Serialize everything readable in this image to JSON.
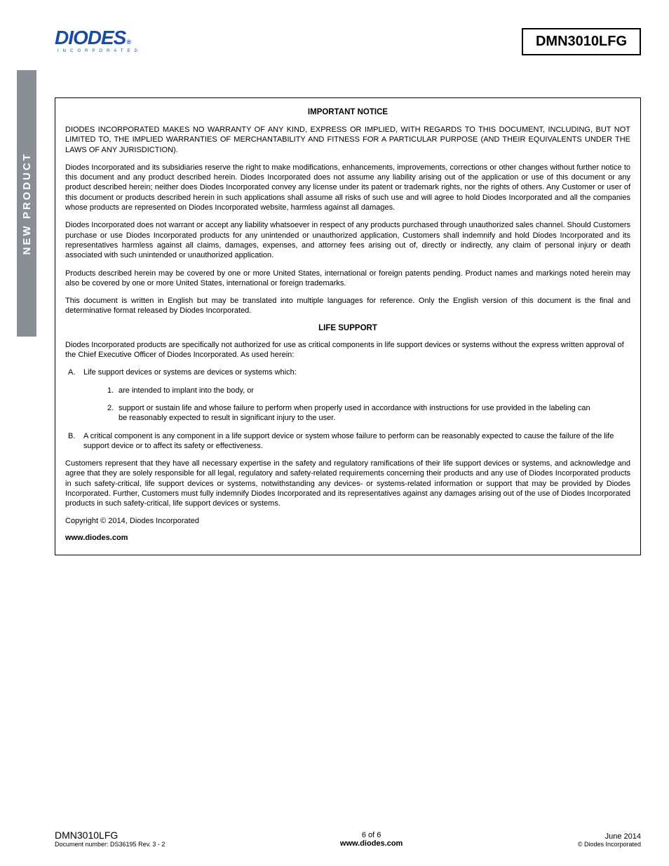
{
  "sideTab": "NEW PRODUCT",
  "logo": {
    "name": "DIODES",
    "reg": "®",
    "sub": "INCORPORATED"
  },
  "partNumber": "DMN3010LFG",
  "notice": {
    "title": "IMPORTANT NOTICE",
    "p1": "DIODES INCORPORATED MAKES NO WARRANTY OF ANY KIND, EXPRESS OR IMPLIED, WITH REGARDS TO THIS DOCUMENT, INCLUDING, BUT NOT LIMITED TO, THE IMPLIED WARRANTIES OF MERCHANTABILITY AND FITNESS FOR A PARTICULAR PURPOSE (AND THEIR EQUIVALENTS UNDER THE LAWS OF ANY JURISDICTION).",
    "p2": "Diodes Incorporated and its subsidiaries reserve the right to make modifications, enhancements, improvements, corrections or other changes without further notice to this document and any product described herein. Diodes Incorporated does not assume any liability arising out of the application or use of this document or any product described herein; neither does Diodes Incorporated convey any license under its patent or trademark rights, nor the rights of others.  Any Customer or user of this document or products described herein in such applications shall assume all risks of such use and will agree to hold Diodes Incorporated and all the companies whose products are represented on Diodes Incorporated website, harmless against all damages.",
    "p3": "Diodes Incorporated does not warrant or accept any liability whatsoever in respect of any products purchased through unauthorized sales channel. Should Customers purchase or use Diodes Incorporated products for any unintended or unauthorized application, Customers shall indemnify and hold Diodes Incorporated and its representatives harmless against all claims, damages, expenses, and attorney fees arising out of, directly or indirectly, any claim of personal injury or death associated with such unintended or unauthorized application.",
    "p4": "Products described herein may be covered by one or more United States, international or foreign patents pending.  Product names and markings noted herein may also be covered by one or more United States, international or foreign trademarks.",
    "p5": "This document is written in English but may be translated into multiple languages for reference.  Only the English version of this document is the final and determinative format released by Diodes Incorporated."
  },
  "lifeSupport": {
    "title": "LIFE SUPPORT",
    "intro": "Diodes Incorporated products are specifically not authorized for use as critical components in life support devices or systems without the express written approval of the Chief Executive Officer of Diodes Incorporated. As used herein:",
    "A": {
      "label": "A.",
      "text": "Life support devices or systems are devices or systems which:"
    },
    "A1": {
      "label": "1.",
      "text": "are intended to implant into the body, or"
    },
    "A2": {
      "label": "2.",
      "text": "support or sustain life and whose failure to perform when properly used in accordance with instructions for use provided in the labeling can be reasonably expected to result in significant injury to the user."
    },
    "B": {
      "label": "B.",
      "text": "A critical component is any component in a life support device or system whose failure to perform can be reasonably expected to cause the failure of the life support device or to affect its safety or effectiveness."
    },
    "closing": "Customers represent that they have all necessary expertise in the safety and regulatory ramifications of their life support devices or systems, and acknowledge and agree that they are solely responsible for all legal, regulatory and safety-related requirements concerning their products and any use of Diodes Incorporated products in such safety-critical, life support devices or systems, notwithstanding any devices- or systems-related information or support that may be provided by Diodes Incorporated.  Further, Customers must fully indemnify Diodes Incorporated and its representatives against any damages arising out of the use of Diodes Incorporated products in such safety-critical, life support devices or systems."
  },
  "copyright": "Copyright © 2014, Diodes Incorporated",
  "websiteBold": "www.diodes.com",
  "footer": {
    "left": {
      "part": "DMN3010LFG",
      "doc": "Document number: DS36195  Rev. 3 - 2"
    },
    "center": {
      "page": "6 of 6",
      "web": "www.diodes.com"
    },
    "right": {
      "date": "June 2014",
      "cop": "© Diodes Incorporated"
    }
  },
  "colors": {
    "brand": "#1a4da0",
    "sidebar": "#8a8f95",
    "text": "#000000",
    "bg": "#ffffff"
  }
}
